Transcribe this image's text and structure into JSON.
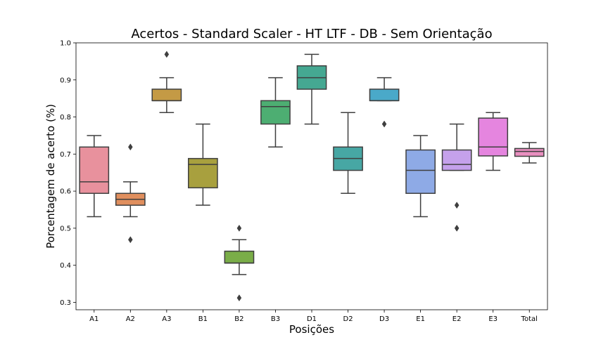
{
  "chart_data": {
    "type": "box",
    "title": "Acertos - Standard Scaler - HT LTF - DB - Sem Orientação",
    "xlabel": "Posições",
    "ylabel": "Porcentagem de acerto (%)",
    "ylim": [
      0.28,
      1.0
    ],
    "yticks": [
      0.3,
      0.4,
      0.5,
      0.6,
      0.7,
      0.8,
      0.9,
      1.0
    ],
    "ytick_labels": [
      "0.3",
      "0.4",
      "0.5",
      "0.6",
      "0.7",
      "0.8",
      "0.9",
      "1.0"
    ],
    "grid": false,
    "categories": [
      "A1",
      "A2",
      "A3",
      "B1",
      "B2",
      "B3",
      "D1",
      "D2",
      "D3",
      "E1",
      "E2",
      "E3",
      "Total"
    ],
    "boxes": [
      {
        "label": "A1",
        "color": "#E8919D",
        "whisker_low": 0.531,
        "q1": 0.594,
        "median": 0.625,
        "q3": 0.719,
        "whisker_high": 0.75,
        "outliers": []
      },
      {
        "label": "A2",
        "color": "#E08F5E",
        "whisker_low": 0.531,
        "q1": 0.562,
        "median": 0.578,
        "q3": 0.594,
        "whisker_high": 0.625,
        "outliers": [
          0.719,
          0.469
        ]
      },
      {
        "label": "A3",
        "color": "#C49A45",
        "whisker_low": 0.812,
        "q1": 0.844,
        "median": 0.844,
        "q3": 0.875,
        "whisker_high": 0.906,
        "outliers": [
          0.969
        ]
      },
      {
        "label": "B1",
        "color": "#A8A03E",
        "whisker_low": 0.562,
        "q1": 0.609,
        "median": 0.672,
        "q3": 0.688,
        "whisker_high": 0.781,
        "outliers": []
      },
      {
        "label": "B2",
        "color": "#7AAD48",
        "whisker_low": 0.375,
        "q1": 0.406,
        "median": 0.406,
        "q3": 0.438,
        "whisker_high": 0.469,
        "outliers": [
          0.5,
          0.312
        ]
      },
      {
        "label": "B3",
        "color": "#4DAE72",
        "whisker_low": 0.719,
        "q1": 0.781,
        "median": 0.828,
        "q3": 0.844,
        "whisker_high": 0.906,
        "outliers": []
      },
      {
        "label": "D1",
        "color": "#45A892",
        "whisker_low": 0.781,
        "q1": 0.875,
        "median": 0.906,
        "q3": 0.938,
        "whisker_high": 0.969,
        "outliers": []
      },
      {
        "label": "D2",
        "color": "#47A7A4",
        "whisker_low": 0.594,
        "q1": 0.656,
        "median": 0.688,
        "q3": 0.719,
        "whisker_high": 0.812,
        "outliers": []
      },
      {
        "label": "D3",
        "color": "#4AA9C9",
        "whisker_low": 0.844,
        "q1": 0.844,
        "median": 0.844,
        "q3": 0.875,
        "whisker_high": 0.906,
        "outliers": [
          0.781
        ]
      },
      {
        "label": "E1",
        "color": "#8EAAE6",
        "whisker_low": 0.531,
        "q1": 0.594,
        "median": 0.656,
        "q3": 0.711,
        "whisker_high": 0.75,
        "outliers": []
      },
      {
        "label": "E2",
        "color": "#C5A1EB",
        "whisker_low": 0.656,
        "q1": 0.656,
        "median": 0.672,
        "q3": 0.711,
        "whisker_high": 0.781,
        "outliers": [
          0.562,
          0.5
        ]
      },
      {
        "label": "E3",
        "color": "#E585DF",
        "whisker_low": 0.656,
        "q1": 0.695,
        "median": 0.719,
        "q3": 0.797,
        "whisker_high": 0.812,
        "outliers": []
      },
      {
        "label": "Total",
        "color": "#E98FC0",
        "whisker_low": 0.676,
        "q1": 0.694,
        "median": 0.707,
        "q3": 0.715,
        "whisker_high": 0.731,
        "outliers": []
      }
    ]
  }
}
